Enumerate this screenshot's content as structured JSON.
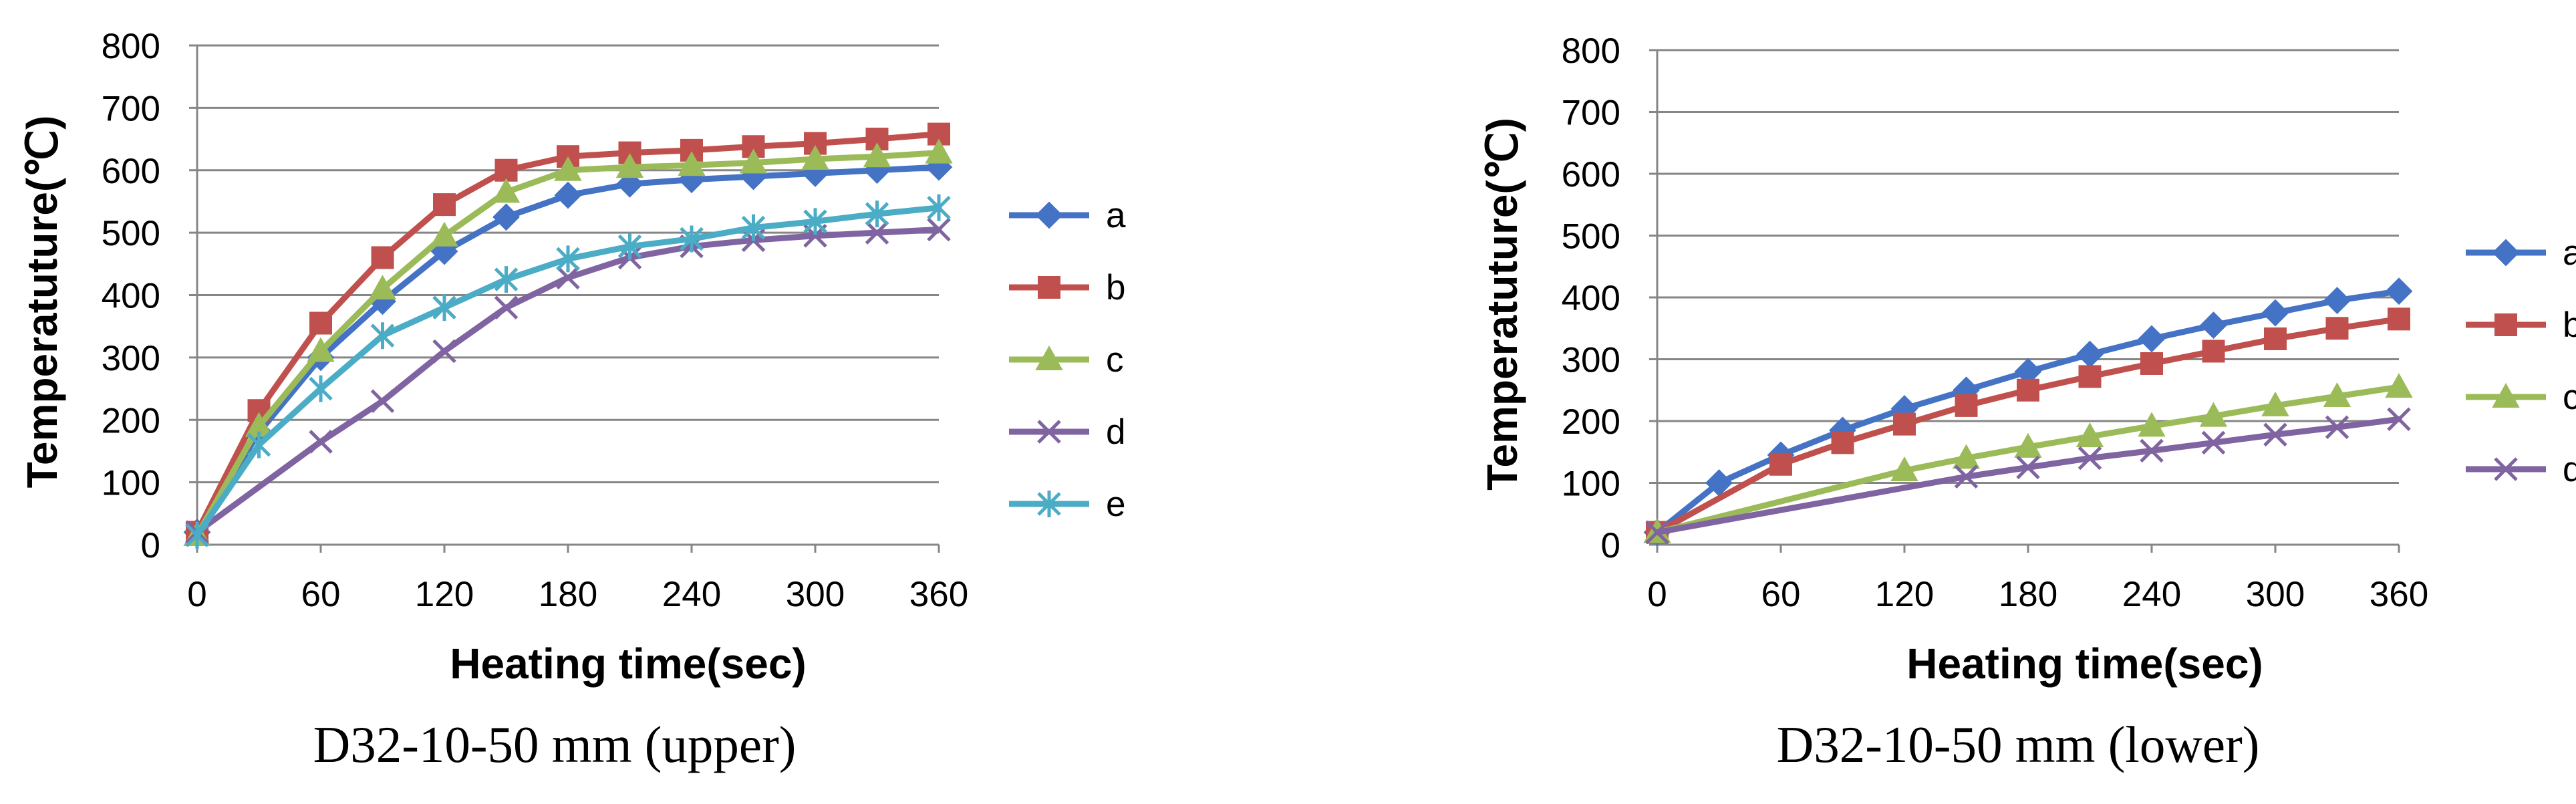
{
  "chart_data": [
    {
      "type": "line",
      "title": "",
      "caption": "D32-10-50 mm (upper)",
      "xlabel": "Heating time(sec)",
      "ylabel": "Temperatuture(℃)",
      "xlim": [
        0,
        360
      ],
      "ylim": [
        0,
        800
      ],
      "xticks": [
        "0",
        "60",
        "120",
        "180",
        "240",
        "300",
        "360"
      ],
      "yticks": [
        "0",
        "100",
        "200",
        "300",
        "400",
        "500",
        "600",
        "700",
        "800"
      ],
      "grid": "horizontal",
      "legend": "right",
      "series": [
        {
          "name": "a",
          "color": "#4472C4",
          "marker": "diamond",
          "x": [
            0,
            30,
            60,
            90,
            120,
            150,
            180,
            210,
            240,
            270,
            300,
            330,
            360
          ],
          "y": [
            20,
            180,
            300,
            390,
            470,
            525,
            560,
            578,
            585,
            590,
            595,
            600,
            605
          ]
        },
        {
          "name": "b",
          "color": "#C0504D",
          "marker": "square",
          "x": [
            0,
            30,
            60,
            90,
            120,
            150,
            180,
            210,
            240,
            270,
            300,
            330,
            360
          ],
          "y": [
            20,
            215,
            355,
            460,
            545,
            600,
            622,
            628,
            632,
            638,
            643,
            650,
            658
          ]
        },
        {
          "name": "c",
          "color": "#9BBB59",
          "marker": "triangle",
          "x": [
            0,
            30,
            60,
            90,
            120,
            150,
            180,
            210,
            240,
            270,
            300,
            330,
            360
          ],
          "y": [
            15,
            190,
            310,
            410,
            495,
            565,
            600,
            605,
            608,
            612,
            618,
            622,
            628
          ]
        },
        {
          "name": "d",
          "color": "#8064A2",
          "marker": "x",
          "x": [
            0,
            60,
            90,
            120,
            150,
            180,
            210,
            240,
            270,
            300,
            330,
            360
          ],
          "y": [
            20,
            165,
            230,
            310,
            380,
            428,
            460,
            478,
            488,
            495,
            500,
            505
          ]
        },
        {
          "name": "e",
          "color": "#4BACC6",
          "marker": "star",
          "x": [
            0,
            30,
            60,
            90,
            120,
            150,
            180,
            210,
            240,
            270,
            300,
            330,
            360
          ],
          "y": [
            15,
            160,
            250,
            335,
            380,
            425,
            458,
            478,
            490,
            508,
            518,
            530,
            540
          ]
        }
      ]
    },
    {
      "type": "line",
      "title": "",
      "caption": "D32-10-50 mm (lower)",
      "xlabel": "Heating time(sec)",
      "ylabel": "Temperatuture(℃)",
      "xlim": [
        0,
        360
      ],
      "ylim": [
        0,
        800
      ],
      "xticks": [
        "0",
        "60",
        "120",
        "180",
        "240",
        "300",
        "360"
      ],
      "yticks": [
        "0",
        "100",
        "200",
        "300",
        "400",
        "500",
        "600",
        "700",
        "800"
      ],
      "grid": "horizontal",
      "legend": "right",
      "series": [
        {
          "name": "a",
          "color": "#4472C4",
          "marker": "diamond",
          "x": [
            0,
            30,
            60,
            90,
            120,
            150,
            180,
            210,
            240,
            270,
            300,
            330,
            360
          ],
          "y": [
            20,
            100,
            145,
            185,
            220,
            250,
            280,
            308,
            333,
            355,
            375,
            395,
            410
          ]
        },
        {
          "name": "b",
          "color": "#C0504D",
          "marker": "square",
          "x": [
            0,
            60,
            90,
            120,
            150,
            180,
            210,
            240,
            270,
            300,
            330,
            360
          ],
          "y": [
            20,
            130,
            165,
            195,
            225,
            250,
            272,
            293,
            313,
            333,
            350,
            365
          ]
        },
        {
          "name": "c",
          "color": "#9BBB59",
          "marker": "triangle",
          "x": [
            0,
            120,
            150,
            180,
            210,
            240,
            270,
            300,
            330,
            360
          ],
          "y": [
            20,
            120,
            140,
            158,
            175,
            192,
            208,
            225,
            240,
            255
          ]
        },
        {
          "name": "d",
          "color": "#8064A2",
          "marker": "x",
          "x": [
            0,
            150,
            180,
            210,
            240,
            270,
            300,
            330,
            360
          ],
          "y": [
            20,
            110,
            125,
            140,
            152,
            165,
            178,
            190,
            203
          ]
        }
      ]
    }
  ]
}
